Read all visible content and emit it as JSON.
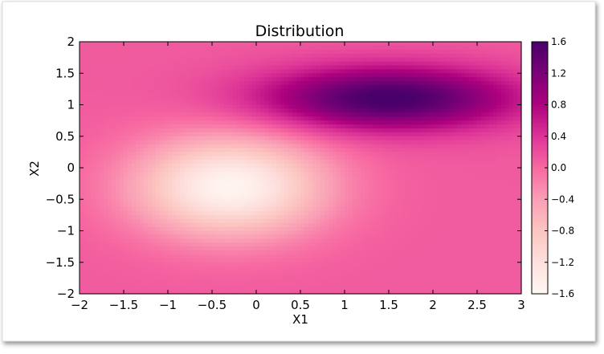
{
  "chart_data": {
    "type": "heatmap",
    "title": "Distribution",
    "xlabel": "X1",
    "ylabel": "X2",
    "xlim": [
      -2,
      3
    ],
    "ylim": [
      -2,
      2
    ],
    "x_ticks": [
      "−2",
      "−1.5",
      "−1",
      "−0.5",
      "0",
      "0.5",
      "1",
      "1.5",
      "2",
      "2.5",
      "3"
    ],
    "y_ticks": [
      "−2",
      "−1.5",
      "−1",
      "−0.5",
      "0",
      "0.5",
      "1",
      "1.5",
      "2"
    ],
    "colorbar": {
      "range": [
        -1.6,
        1.6
      ],
      "ticks": [
        "1.6",
        "1.2",
        "0.8",
        "0.4",
        "0.0",
        "−0.4",
        "−0.8",
        "−1.2",
        "−1.6"
      ],
      "colormap": "RdPu",
      "colors": [
        "#fff7f3",
        "#fde0dd",
        "#fcc5c0",
        "#fa9fb5",
        "#f768a1",
        "#dd3497",
        "#ae017e",
        "#7a0177",
        "#49006a"
      ]
    },
    "surface": {
      "baseline": 0.1,
      "peak": {
        "amplitude": 1.55,
        "center": [
          1.5,
          1.1
        ],
        "sigma": [
          1.0,
          0.35
        ]
      },
      "trough": {
        "amplitude": -1.65,
        "center": [
          -0.3,
          -0.3
        ],
        "sigma": [
          0.75,
          0.55
        ]
      }
    },
    "grid": false
  }
}
